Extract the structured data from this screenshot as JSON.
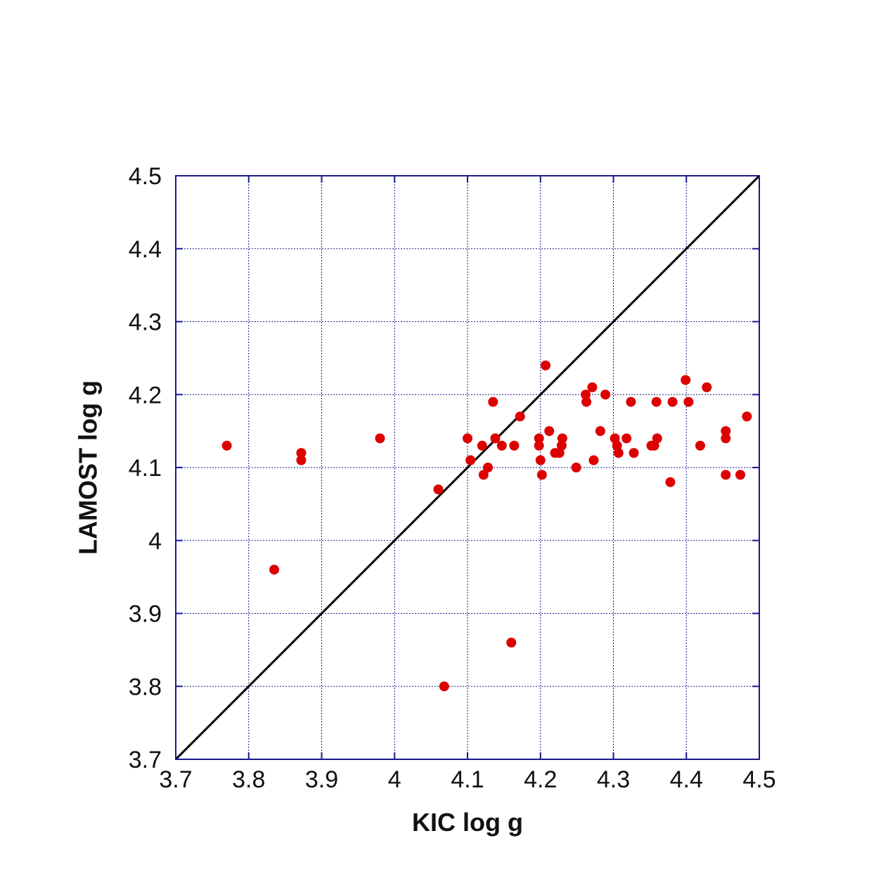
{
  "chart_data": {
    "type": "scatter",
    "title": "",
    "xlabel": "KIC log g",
    "ylabel": "LAMOST log g",
    "xlim": [
      3.7,
      4.5
    ],
    "ylim": [
      3.7,
      4.5
    ],
    "x_ticks": [
      "3.7",
      "3.8",
      "3.9",
      "4",
      "4.1",
      "4.2",
      "4.3",
      "4.4",
      "4.5"
    ],
    "y_ticks": [
      "3.7",
      "3.8",
      "3.9",
      "4",
      "4.1",
      "4.2",
      "4.3",
      "4.4",
      "4.5"
    ],
    "x_tick_values": [
      3.7,
      3.8,
      3.9,
      4.0,
      4.1,
      4.2,
      4.3,
      4.4,
      4.5
    ],
    "y_tick_values": [
      3.7,
      3.8,
      3.9,
      4.0,
      4.1,
      4.2,
      4.3,
      4.4,
      4.5
    ],
    "grid": true,
    "reference_line": {
      "type": "identity",
      "x": [
        3.7,
        4.5
      ],
      "y": [
        3.7,
        4.5
      ],
      "color": "#000000"
    },
    "frame_color": "#1a1a8c",
    "grid_color": "#1a1a8c",
    "marker_color": "#dd0000",
    "series": [
      {
        "points": [
          [
            3.77,
            4.13
          ],
          [
            3.835,
            3.96
          ],
          [
            3.872,
            4.12
          ],
          [
            3.872,
            4.11
          ],
          [
            3.98,
            4.14
          ],
          [
            4.06,
            4.07
          ],
          [
            4.068,
            3.8
          ],
          [
            4.1,
            4.14
          ],
          [
            4.104,
            4.11
          ],
          [
            4.12,
            4.13
          ],
          [
            4.122,
            4.09
          ],
          [
            4.128,
            4.1
          ],
          [
            4.135,
            4.19
          ],
          [
            4.138,
            4.14
          ],
          [
            4.147,
            4.13
          ],
          [
            4.16,
            3.86
          ],
          [
            4.164,
            4.13
          ],
          [
            4.172,
            4.17
          ],
          [
            4.198,
            4.14
          ],
          [
            4.198,
            4.13
          ],
          [
            4.2,
            4.11
          ],
          [
            4.202,
            4.09
          ],
          [
            4.207,
            4.24
          ],
          [
            4.212,
            4.15
          ],
          [
            4.22,
            4.12
          ],
          [
            4.226,
            4.12
          ],
          [
            4.229,
            4.13
          ],
          [
            4.23,
            4.14
          ],
          [
            4.249,
            4.1
          ],
          [
            4.262,
            4.2
          ],
          [
            4.263,
            4.19
          ],
          [
            4.271,
            4.21
          ],
          [
            4.273,
            4.11
          ],
          [
            4.282,
            4.15
          ],
          [
            4.289,
            4.2
          ],
          [
            4.302,
            4.14
          ],
          [
            4.305,
            4.13
          ],
          [
            4.307,
            4.12
          ],
          [
            4.318,
            4.14
          ],
          [
            4.324,
            4.19
          ],
          [
            4.328,
            4.12
          ],
          [
            4.352,
            4.13
          ],
          [
            4.356,
            4.13
          ],
          [
            4.359,
            4.19
          ],
          [
            4.36,
            4.14
          ],
          [
            4.378,
            4.08
          ],
          [
            4.381,
            4.19
          ],
          [
            4.399,
            4.22
          ],
          [
            4.403,
            4.19
          ],
          [
            4.419,
            4.13
          ],
          [
            4.428,
            4.21
          ],
          [
            4.454,
            4.15
          ],
          [
            4.454,
            4.14
          ],
          [
            4.454,
            4.09
          ],
          [
            4.474,
            4.09
          ],
          [
            4.483,
            4.17
          ]
        ]
      }
    ]
  }
}
